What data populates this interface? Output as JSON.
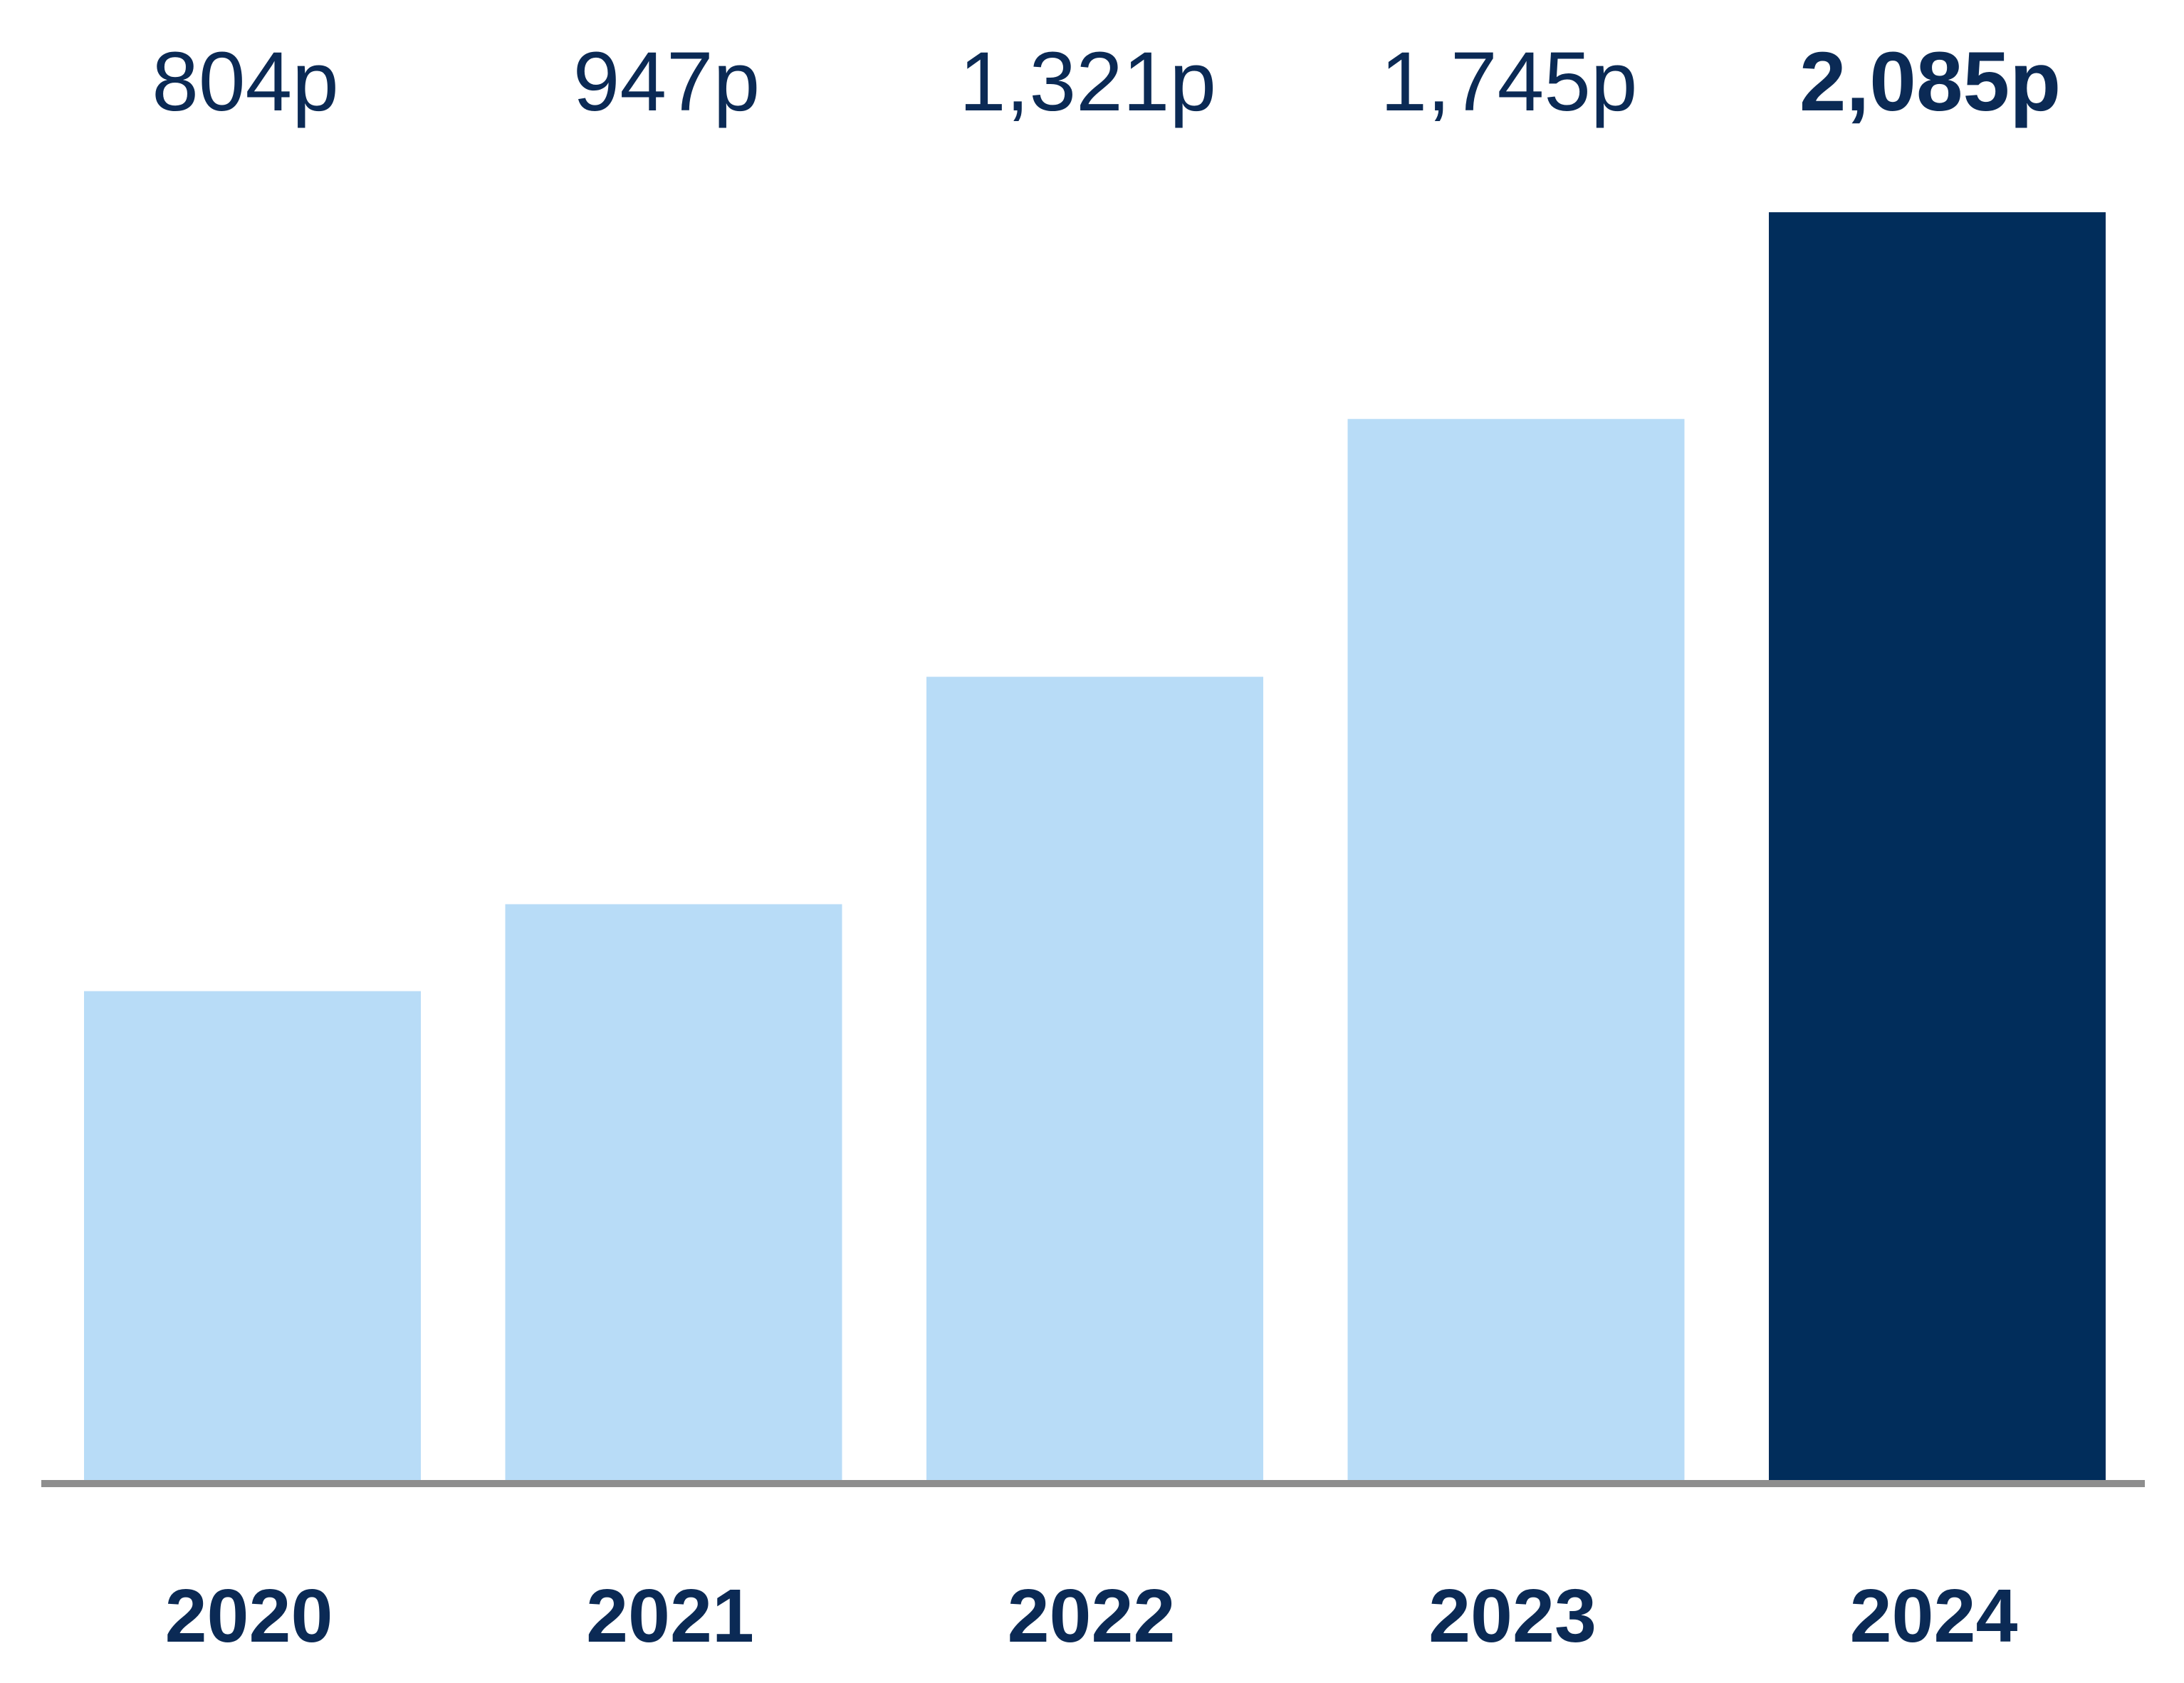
{
  "chart_data": {
    "type": "bar",
    "categories": [
      "2020",
      "2021",
      "2022",
      "2023",
      "2024"
    ],
    "values": [
      804,
      947,
      1321,
      1745,
      2085
    ],
    "value_labels": [
      "804p",
      "947p",
      "1,321p",
      "1,745p",
      "2,085p"
    ],
    "highlight_index": 4,
    "title": "",
    "xlabel": "",
    "ylabel": "",
    "ylim": [
      0,
      2085
    ],
    "grid": false,
    "legend": "none"
  },
  "colors": {
    "bar": "#b8dcf7",
    "bar_highlight": "#012d5b",
    "text": "#0b2a55",
    "axis": "#8e8e8e"
  }
}
